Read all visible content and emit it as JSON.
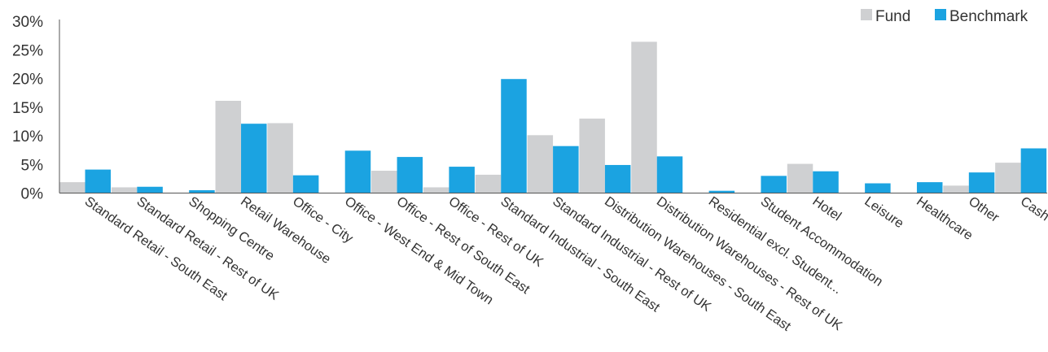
{
  "chart_data": {
    "type": "bar",
    "categories": [
      "Standard Retail - South East",
      "Standard Retail - Rest of UK",
      "Shopping Centre",
      "Retail Warehouse",
      "Office - City",
      "Office - West End & Mid Town",
      "Office - Rest of South East",
      "Office - Rest of UK",
      "Standard Industrial - South East",
      "Standard Industrial - Rest of UK",
      "Distribution Warehouses - South East",
      "Distribution Warehouses - Rest of UK",
      "Residential excl. Student...",
      "Student Accommodation",
      "Hotel",
      "Leisure",
      "Healthcare",
      "Other",
      "Cash"
    ],
    "series": [
      {
        "name": "Fund",
        "color": "#cfd0d2",
        "values": [
          1.9,
          1.0,
          0,
          16.1,
          12.2,
          0,
          3.9,
          1.0,
          3.2,
          10.1,
          13.0,
          26.4,
          0,
          0,
          5.1,
          0,
          0,
          1.3,
          5.3
        ]
      },
      {
        "name": "Benchmark",
        "color": "#1ba3e1",
        "values": [
          4.1,
          1.1,
          0.5,
          12.1,
          3.1,
          7.4,
          6.3,
          4.6,
          19.9,
          8.2,
          4.9,
          6.4,
          0.4,
          3.0,
          3.8,
          1.7,
          1.9,
          3.6,
          7.8
        ]
      }
    ],
    "yticks": [
      "0%",
      "5%",
      "10%",
      "15%",
      "20%",
      "25%",
      "30%"
    ],
    "ylim": [
      0,
      30
    ],
    "title": "",
    "xlabel": "",
    "ylabel": "",
    "grid": false,
    "legend": "top-right"
  }
}
